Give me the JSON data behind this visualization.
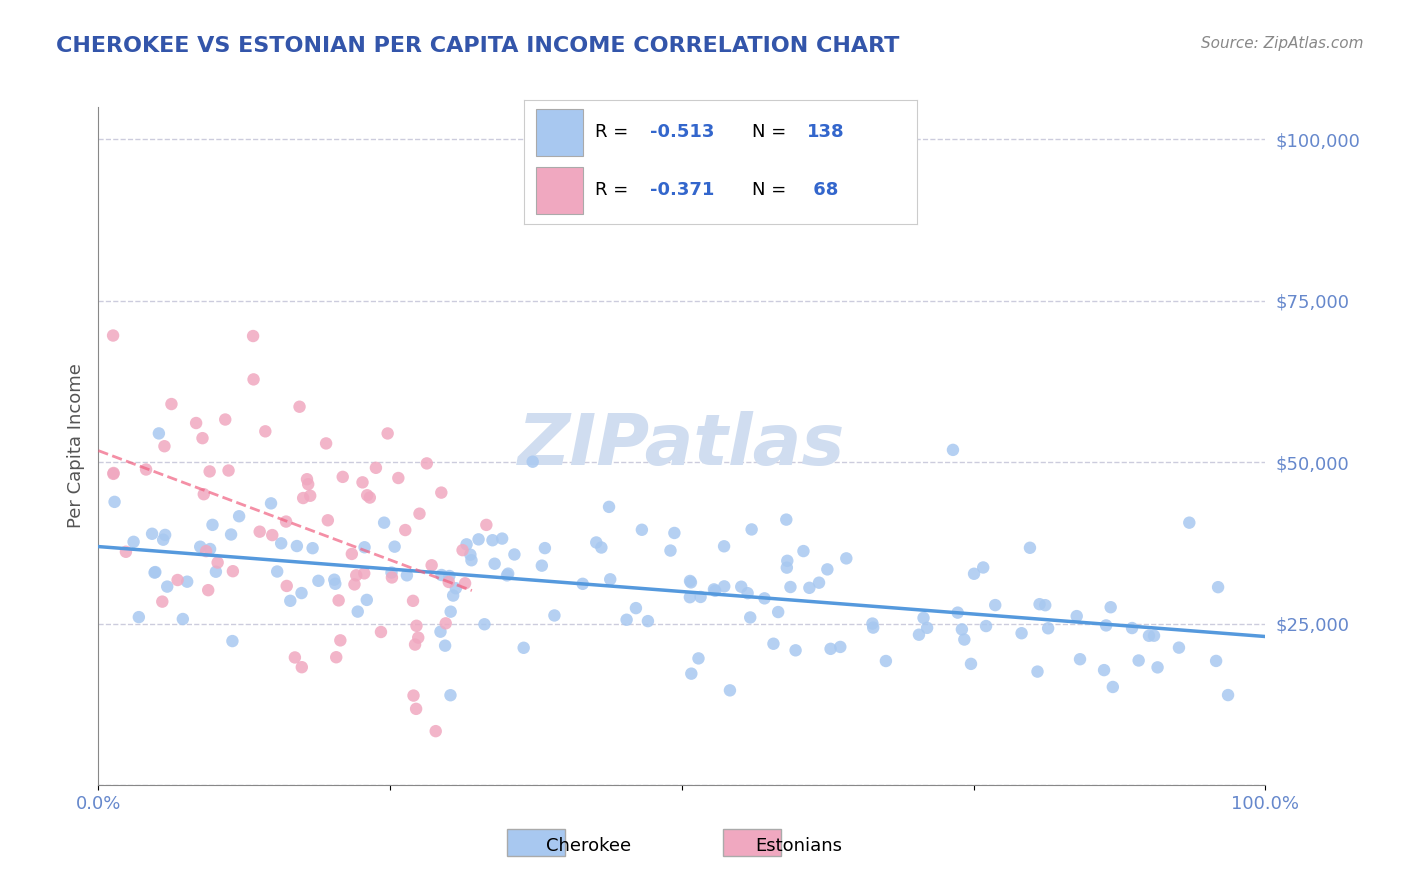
{
  "title": "CHEROKEE VS ESTONIAN PER CAPITA INCOME CORRELATION CHART",
  "source": "Source: ZipAtlas.com",
  "xlabel": "",
  "ylabel": "Per Capita Income",
  "xlim": [
    0.0,
    1.0
  ],
  "ylim": [
    0,
    105000
  ],
  "yticks": [
    0,
    25000,
    50000,
    75000,
    100000
  ],
  "ytick_labels": [
    "",
    "$25,000",
    "$50,000",
    "$75,000",
    "$100,000"
  ],
  "xticks": [
    0.0,
    0.25,
    0.5,
    0.75,
    1.0
  ],
  "xtick_labels": [
    "0.0%",
    "",
    "",
    "",
    "100.0%"
  ],
  "cherokee_R": -0.513,
  "cherokee_N": 138,
  "estonian_R": -0.371,
  "estonian_N": 68,
  "cherokee_color": "#a8c8f0",
  "estonian_color": "#f0a8c0",
  "cherokee_line_color": "#5599dd",
  "estonian_line_color": "#f06080",
  "title_color": "#3355aa",
  "axis_label_color": "#555555",
  "tick_color": "#6688cc",
  "watermark": "ZIPatlas",
  "watermark_color": "#d0ddf0",
  "grid_color": "#ccccdd",
  "background_color": "#ffffff",
  "legend_R_color": "#3366cc",
  "legend_N_color": "#3366cc"
}
